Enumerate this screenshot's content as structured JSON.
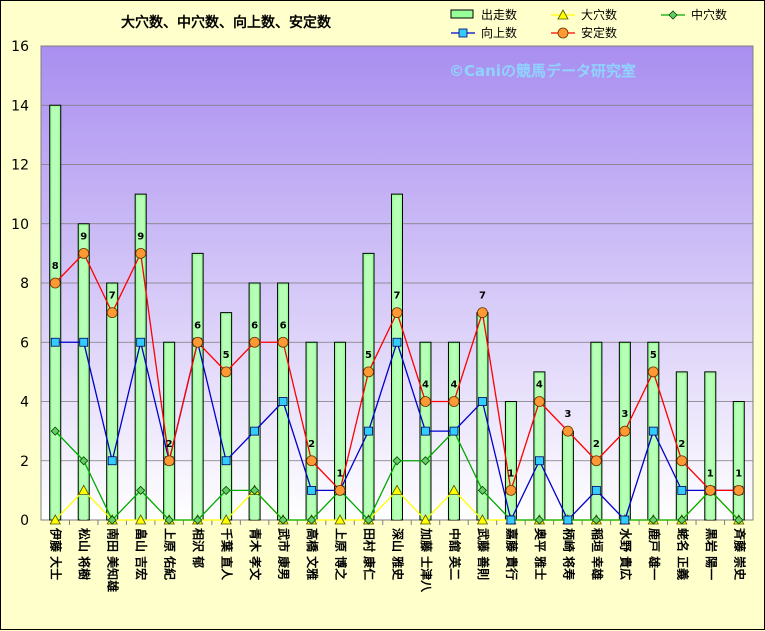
{
  "chart_data": {
    "type": "bar",
    "title": "大穴数、中穴数、向上数、安定数",
    "watermark": "©Caniの競馬データ研究室",
    "ylim": [
      0,
      16
    ],
    "yticks": [
      0,
      2,
      4,
      6,
      8,
      10,
      12,
      14,
      16
    ],
    "grid": true,
    "legend_position": "top-right",
    "categories": [
      "伊藤 大士",
      "松山 将樹",
      "南田 美知雄",
      "畠山 吉宏",
      "上原 佑紀",
      "相沢 郁",
      "千葉 直人",
      "青木 孝文",
      "武市 康男",
      "高橋 文雅",
      "上原 博之",
      "田村 康仁",
      "深山 雅史",
      "加藤 士津八",
      "中舘 英二",
      "武藤 善則",
      "嘉藤 貴行",
      "奥平 雅士",
      "柄崎 将寿",
      "稲垣 幸雄",
      "水野 貴広",
      "鹿戸 雄一",
      "蛯名 正義",
      "黒岩 陽一",
      "斉藤 崇史"
    ],
    "series": [
      {
        "name": "出走数",
        "kind": "bar",
        "color": "#99ff99",
        "values": [
          14,
          10,
          8,
          11,
          6,
          9,
          7,
          8,
          8,
          6,
          6,
          9,
          11,
          6,
          6,
          7,
          4,
          5,
          3,
          6,
          6,
          6,
          5,
          5,
          4
        ]
      },
      {
        "name": "大穴数",
        "kind": "line",
        "color": "#ffff00",
        "marker": "triangle",
        "values": [
          0,
          1,
          0,
          0,
          0,
          0,
          0,
          1,
          0,
          0,
          0,
          0,
          1,
          0,
          1,
          0,
          0,
          0,
          0,
          0,
          0,
          0,
          0,
          1,
          0
        ]
      },
      {
        "name": "中穴数",
        "kind": "line",
        "color": "#00aa00",
        "marker": "diamond",
        "values": [
          3,
          2,
          0,
          1,
          0,
          0,
          1,
          1,
          0,
          0,
          1,
          0,
          2,
          2,
          3,
          1,
          0,
          0,
          0,
          0,
          0,
          0,
          0,
          1,
          0
        ]
      },
      {
        "name": "向上数",
        "kind": "line",
        "color": "#0000cc",
        "marker": "square",
        "values": [
          6,
          6,
          2,
          6,
          2,
          6,
          2,
          3,
          4,
          1,
          1,
          3,
          6,
          3,
          3,
          4,
          0,
          2,
          0,
          1,
          0,
          3,
          1,
          1,
          1
        ]
      },
      {
        "name": "安定数",
        "kind": "line",
        "color": "#ff0000",
        "marker": "circle",
        "values": [
          8,
          9,
          7,
          9,
          2,
          6,
          5,
          6,
          6,
          2,
          1,
          5,
          7,
          4,
          4,
          7,
          1,
          4,
          3,
          2,
          3,
          5,
          2,
          1,
          1
        ],
        "data_labels": [
          8,
          9,
          7,
          9,
          2,
          6,
          5,
          6,
          6,
          2,
          1,
          5,
          7,
          4,
          4,
          7,
          1,
          4,
          3,
          2,
          3,
          5,
          2,
          1,
          1
        ]
      }
    ]
  }
}
